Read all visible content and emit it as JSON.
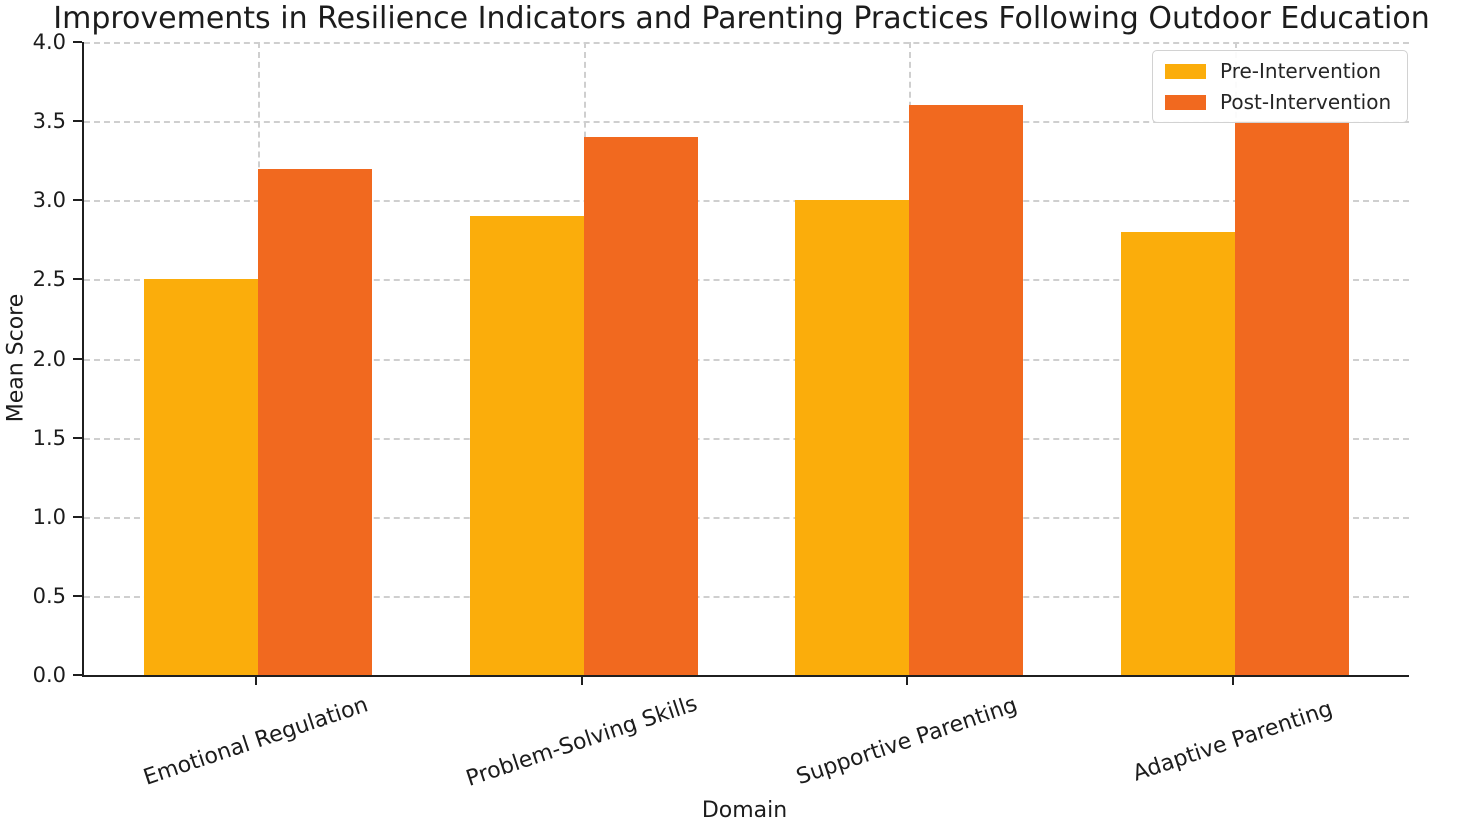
{
  "chart_data": {
    "type": "bar",
    "title": "Improvements in Resilience Indicators and Parenting Practices Following Outdoor Education",
    "xlabel": "Domain",
    "ylabel": "Mean Score",
    "categories": [
      "Emotional Regulation",
      "Problem-Solving Skills",
      "Supportive Parenting",
      "Adaptive Parenting"
    ],
    "series": [
      {
        "name": "Pre-Intervention",
        "color": "#FBAD0B",
        "values": [
          2.5,
          2.9,
          3.0,
          2.8
        ]
      },
      {
        "name": "Post-Intervention",
        "color": "#F1691F",
        "values": [
          3.2,
          3.4,
          3.6,
          3.5
        ]
      }
    ],
    "ylim": [
      0,
      4
    ],
    "yticks": [
      0.0,
      0.5,
      1.0,
      1.5,
      2.0,
      2.5,
      3.0,
      3.5,
      4.0
    ],
    "grid": "dashed, horizontal and vertical",
    "legend_position": "upper right"
  }
}
